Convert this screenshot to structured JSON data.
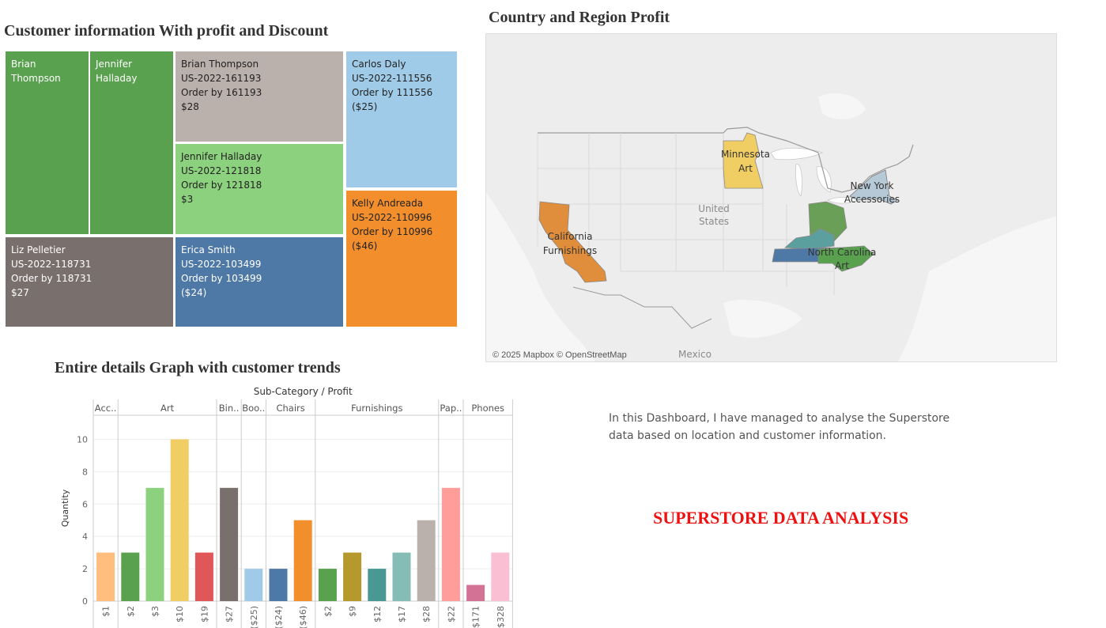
{
  "treemap": {
    "title": "Customer information With profit and Discount",
    "cells": [
      {
        "lines": [
          "Brian",
          "Thompson"
        ],
        "color": "#59a14f"
      },
      {
        "lines": [
          "Jennifer",
          "Halladay"
        ],
        "color": "#59a14f"
      },
      {
        "lines": [
          "Brian Thompson",
          "US-2022-161193",
          "Order by 161193",
          "$28"
        ],
        "color": "#bab0ac"
      },
      {
        "lines": [
          "Jennifer Halladay",
          "US-2022-121818",
          "Order by 121818",
          "$3"
        ],
        "color": "#8cd17d"
      },
      {
        "lines": [
          "Carlos Daly",
          "US-2022-111556",
          "Order by 111556",
          "($25)"
        ],
        "color": "#a0cbe8"
      },
      {
        "lines": [
          "Kelly Andreada",
          "US-2022-110996",
          "Order by 110996",
          "($46)"
        ],
        "color": "#f28e2b"
      },
      {
        "lines": [
          "Liz Pelletier",
          "US-2022-118731",
          "Order by 118731",
          "$27"
        ],
        "color": "#79706e"
      },
      {
        "lines": [
          "Erica Smith",
          "US-2022-103499",
          "Order by 103499",
          "($24)"
        ],
        "color": "#4e79a7"
      }
    ]
  },
  "map": {
    "title": "Country and Region Profit",
    "attribution": "© 2025 Mapbox © OpenStreetMap",
    "places": {
      "country": [
        "United",
        "States"
      ],
      "mexico": "Mexico"
    },
    "states": [
      {
        "name": "Minnesota",
        "lines": [
          "Minnesota",
          "Art"
        ],
        "color": "#f1ce63"
      },
      {
        "name": "New York",
        "lines": [
          "New York",
          "Accessories"
        ],
        "color": "#b5c9d6"
      },
      {
        "name": "California",
        "lines": [
          "California",
          "Furnishings"
        ],
        "color": "#e08e3c"
      },
      {
        "name": "North Carolina",
        "lines": [
          "North Carolina",
          "Art"
        ],
        "color": "#59a14f"
      },
      {
        "name": "Ohio",
        "lines": [],
        "color": "#6a9f58"
      },
      {
        "name": "Kentucky",
        "lines": [],
        "color": "#5c9f9f"
      },
      {
        "name": "Tennessee",
        "lines": [],
        "color": "#4e79a7"
      }
    ]
  },
  "bar_section": {
    "title": "Entire details Graph with customer trends"
  },
  "chart_data": {
    "type": "bar",
    "title": "Sub-Category / Profit",
    "ylabel": "Quantity",
    "ylim": [
      0,
      11
    ],
    "yticks": [
      0,
      2,
      4,
      6,
      8,
      10
    ],
    "grid": true,
    "groups": [
      {
        "label": "Acc..",
        "bars": [
          {
            "x": "$1",
            "value": 3,
            "color": "#ffbe7d"
          }
        ]
      },
      {
        "label": "Art",
        "bars": [
          {
            "x": "$2",
            "value": 3,
            "color": "#59a14f"
          },
          {
            "x": "$3",
            "value": 7,
            "color": "#8cd17d"
          },
          {
            "x": "$10",
            "value": 10,
            "color": "#f1ce63"
          },
          {
            "x": "$19",
            "value": 3,
            "color": "#e15759"
          }
        ]
      },
      {
        "label": "Bin..",
        "bars": [
          {
            "x": "$27",
            "value": 7,
            "color": "#79706e"
          }
        ]
      },
      {
        "label": "Boo..",
        "bars": [
          {
            "x": "($25)",
            "value": 2,
            "color": "#a0cbe8"
          }
        ]
      },
      {
        "label": "Chairs",
        "bars": [
          {
            "x": "($24)",
            "value": 2,
            "color": "#4e79a7"
          },
          {
            "x": "($46)",
            "value": 5,
            "color": "#f28e2b"
          }
        ]
      },
      {
        "label": "Furnishings",
        "bars": [
          {
            "x": "$2",
            "value": 2,
            "color": "#59a14f"
          },
          {
            "x": "$9",
            "value": 3,
            "color": "#b6992d"
          },
          {
            "x": "$12",
            "value": 2,
            "color": "#499894"
          },
          {
            "x": "$17",
            "value": 3,
            "color": "#86bcb6"
          },
          {
            "x": "$28",
            "value": 5,
            "color": "#bab0ac"
          }
        ]
      },
      {
        "label": "Pap..",
        "bars": [
          {
            "x": "$22",
            "value": 7,
            "color": "#ff9d9a"
          }
        ]
      },
      {
        "label": "Phones",
        "bars": [
          {
            "x": "$171",
            "value": 1,
            "color": "#d37295"
          },
          {
            "x": "$328",
            "value": 3,
            "color": "#fabfd2"
          }
        ]
      }
    ]
  },
  "description": "In this Dashboard, I have managed to analyse the Superstore data based on location and customer information.",
  "dashboard_title": "SUPERSTORE DATA ANALYSIS"
}
